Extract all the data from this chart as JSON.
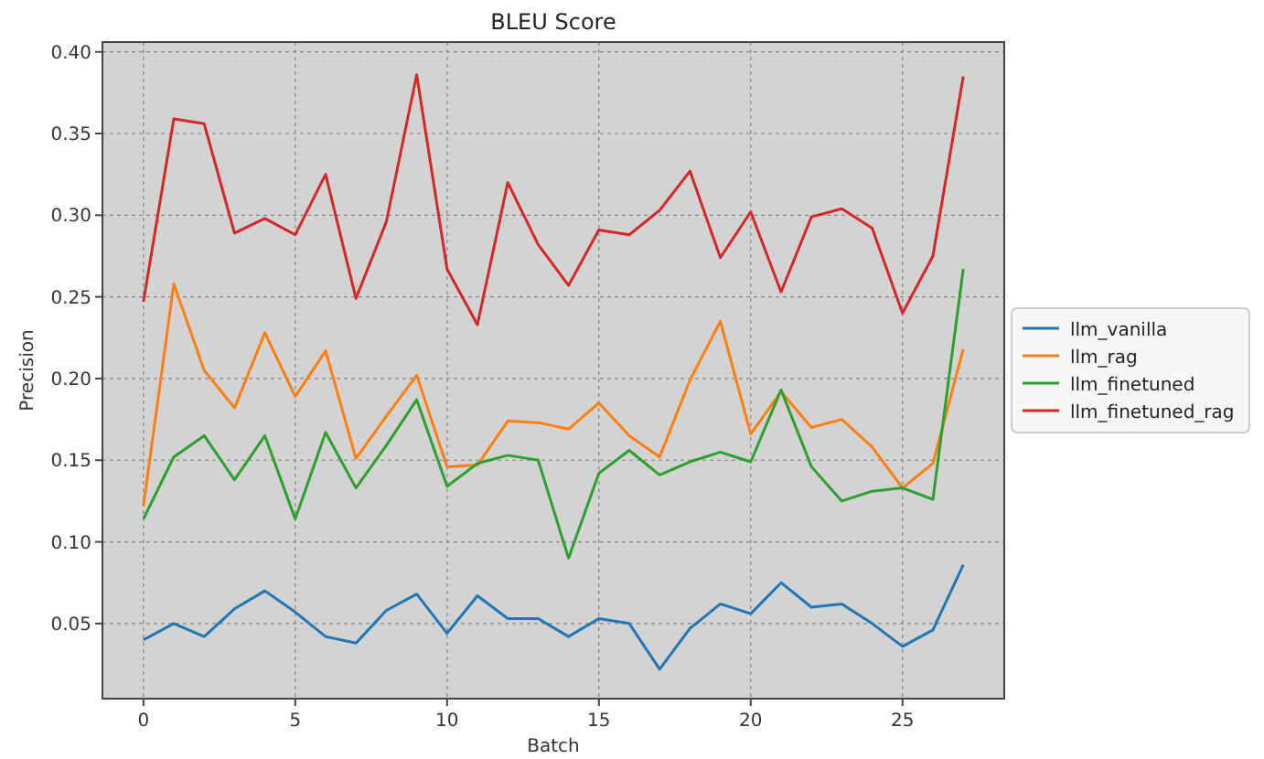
{
  "chart_data": {
    "type": "line",
    "title": "BLEU Score",
    "xlabel": "Batch",
    "ylabel": "Precision",
    "x": [
      0,
      1,
      2,
      3,
      4,
      5,
      6,
      7,
      8,
      9,
      10,
      11,
      12,
      13,
      14,
      15,
      16,
      17,
      18,
      19,
      20,
      21,
      22,
      23,
      24,
      25,
      26,
      27
    ],
    "series": [
      {
        "name": "llm_vanilla",
        "color": "#1f77b4",
        "values": [
          0.04,
          0.05,
          0.042,
          0.059,
          0.07,
          0.057,
          0.042,
          0.038,
          0.058,
          0.068,
          0.044,
          0.067,
          0.053,
          0.053,
          0.042,
          0.053,
          0.05,
          0.022,
          0.047,
          0.062,
          0.056,
          0.075,
          0.06,
          0.062,
          0.05,
          0.036,
          0.046,
          0.086
        ]
      },
      {
        "name": "llm_rag",
        "color": "#ff7f0e",
        "values": [
          0.122,
          0.258,
          0.205,
          0.182,
          0.228,
          0.189,
          0.217,
          0.151,
          0.177,
          0.202,
          0.146,
          0.147,
          0.174,
          0.173,
          0.169,
          0.185,
          0.165,
          0.152,
          0.199,
          0.235,
          0.166,
          0.192,
          0.17,
          0.175,
          0.158,
          0.133,
          0.148,
          0.218
        ]
      },
      {
        "name": "llm_finetuned",
        "color": "#2ca02c",
        "values": [
          0.114,
          0.152,
          0.165,
          0.138,
          0.165,
          0.114,
          0.167,
          0.133,
          0.159,
          0.187,
          0.134,
          0.148,
          0.153,
          0.15,
          0.09,
          0.142,
          0.156,
          0.141,
          0.149,
          0.155,
          0.149,
          0.193,
          0.146,
          0.125,
          0.131,
          0.133,
          0.126,
          0.267
        ]
      },
      {
        "name": "llm_finetuned_rag",
        "color": "#d62728",
        "values": [
          0.247,
          0.359,
          0.356,
          0.289,
          0.298,
          0.288,
          0.325,
          0.249,
          0.296,
          0.386,
          0.267,
          0.233,
          0.32,
          0.282,
          0.257,
          0.291,
          0.288,
          0.303,
          0.327,
          0.274,
          0.302,
          0.253,
          0.299,
          0.304,
          0.292,
          0.24,
          0.275,
          0.385
        ]
      }
    ],
    "xlim": [
      -1.35,
      28.35
    ],
    "xticks": [
      0,
      5,
      10,
      15,
      20,
      25
    ],
    "ylim": [
      0.004,
      0.406
    ],
    "yticks": [
      {
        "value": 0.05,
        "label": "0.05"
      },
      {
        "value": 0.1,
        "label": "0.10"
      },
      {
        "value": 0.15,
        "label": "0.15"
      },
      {
        "value": 0.2,
        "label": "0.20"
      },
      {
        "value": 0.25,
        "label": "0.25"
      },
      {
        "value": 0.3,
        "label": "0.30"
      },
      {
        "value": 0.35,
        "label": "0.35"
      },
      {
        "value": 0.4,
        "label": "0.40"
      }
    ],
    "grid": true,
    "legend": "right",
    "marker": "none",
    "line_style": "solid"
  }
}
